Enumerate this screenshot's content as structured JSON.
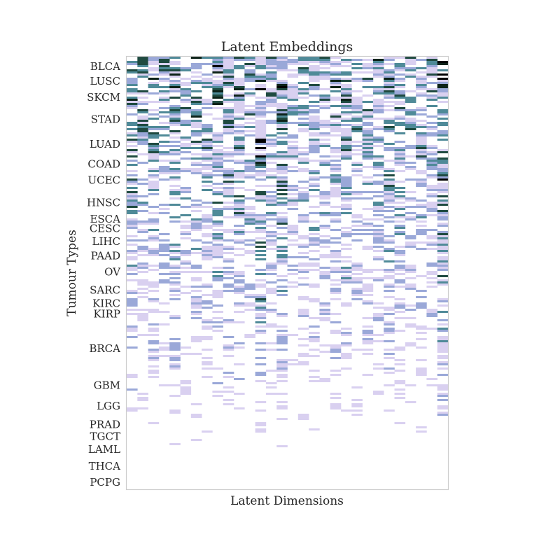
{
  "chart_data": {
    "type": "heatmap",
    "title": "Latent Embeddings",
    "xlabel": "Latent Dimensions",
    "ylabel": "Tumour Types",
    "colormap": "cubehelix (white → lavender → teal → black)",
    "n_latent_dimensions": 30,
    "grid": false,
    "y_groups": [
      {
        "label": "BLCA",
        "start": 0.0,
        "end": 0.045
      },
      {
        "label": "LUSC",
        "start": 0.045,
        "end": 0.068
      },
      {
        "label": "SKCM",
        "start": 0.068,
        "end": 0.12
      },
      {
        "label": "STAD",
        "start": 0.12,
        "end": 0.17
      },
      {
        "label": "LUAD",
        "start": 0.17,
        "end": 0.235
      },
      {
        "label": "COAD",
        "start": 0.235,
        "end": 0.262
      },
      {
        "label": "UCEC",
        "start": 0.262,
        "end": 0.31
      },
      {
        "label": "HNSC",
        "start": 0.31,
        "end": 0.365
      },
      {
        "label": "ESCA",
        "start": 0.365,
        "end": 0.385
      },
      {
        "label": "CESC",
        "start": 0.385,
        "end": 0.41
      },
      {
        "label": "LIHC",
        "start": 0.41,
        "end": 0.445
      },
      {
        "label": "PAAD",
        "start": 0.445,
        "end": 0.475
      },
      {
        "label": "OV",
        "start": 0.475,
        "end": 0.52
      },
      {
        "label": "SARC",
        "start": 0.52,
        "end": 0.56
      },
      {
        "label": "KIRC",
        "start": 0.56,
        "end": 0.58
      },
      {
        "label": "KIRP",
        "start": 0.58,
        "end": 0.61
      },
      {
        "label": "BRCA",
        "start": 0.61,
        "end": 0.74
      },
      {
        "label": "GBM",
        "start": 0.74,
        "end": 0.78
      },
      {
        "label": "LGG",
        "start": 0.78,
        "end": 0.835
      },
      {
        "label": "PRAD",
        "start": 0.835,
        "end": 0.865
      },
      {
        "label": "TGCT",
        "start": 0.865,
        "end": 0.89
      },
      {
        "label": "LAML",
        "start": 0.89,
        "end": 0.925
      },
      {
        "label": "THCA",
        "start": 0.925,
        "end": 0.968
      },
      {
        "label": "PCPG",
        "start": 0.968,
        "end": 1.0
      }
    ],
    "column_activity": [
      0.55,
      0.45,
      0.5,
      0.45,
      0.6,
      0.4,
      0.55,
      0.45,
      0.6,
      0.5,
      0.55,
      0.4,
      0.9,
      0.45,
      0.65,
      0.4,
      0.45,
      0.45,
      0.4,
      0.45,
      0.5,
      0.4,
      0.45,
      0.4,
      0.5,
      0.45,
      0.4,
      0.45,
      0.4,
      0.85
    ],
    "colors": {
      "background": "#ffffff",
      "axes_edge": "#cccccc",
      "cmap_stops": [
        "#ffffff",
        "#d9d0f0",
        "#9aa8d8",
        "#4f8a98",
        "#1f4a40",
        "#0c2218",
        "#000000"
      ]
    }
  }
}
